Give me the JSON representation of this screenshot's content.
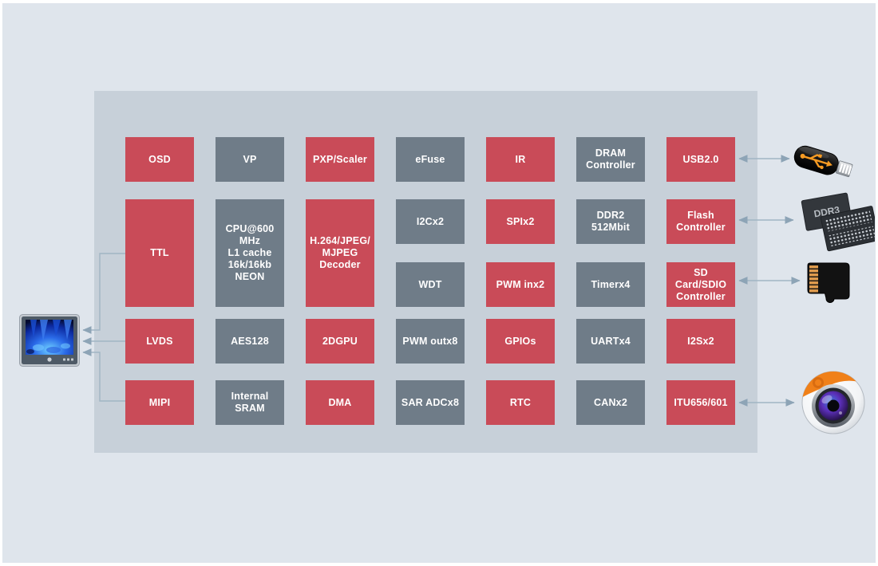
{
  "palette": {
    "red_block": "#c94b58",
    "slate_block": "#6f7c88",
    "container": "#c7d0d9",
    "page_background": "#dfe5ec",
    "arrow": "#93a9ba",
    "block_text": "#ffffff",
    "accent_orange": "#f08019"
  },
  "soc": {
    "blocks": [
      {
        "id": "osd",
        "label": "OSD",
        "color": "red",
        "col": 0,
        "row": 0,
        "rowspan": 1
      },
      {
        "id": "vp",
        "label": "VP",
        "color": "slate",
        "col": 1,
        "row": 0,
        "rowspan": 1
      },
      {
        "id": "pxp-scaler",
        "label": "PXP/Scaler",
        "color": "red",
        "col": 2,
        "row": 0,
        "rowspan": 1
      },
      {
        "id": "efuse",
        "label": "eFuse",
        "color": "slate",
        "col": 3,
        "row": 0,
        "rowspan": 1
      },
      {
        "id": "ir",
        "label": "IR",
        "color": "red",
        "col": 4,
        "row": 0,
        "rowspan": 1
      },
      {
        "id": "dram-controller",
        "label": "DRAM\nController",
        "color": "slate",
        "col": 5,
        "row": 0,
        "rowspan": 1
      },
      {
        "id": "usb2",
        "label": "USB2.0",
        "color": "red",
        "col": 6,
        "row": 0,
        "rowspan": 1
      },
      {
        "id": "ttl",
        "label": "TTL",
        "color": "red",
        "col": 0,
        "row": 1,
        "rowspan": 2
      },
      {
        "id": "cpu",
        "label": "CPU@600\nMHz\nL1 cache\n16k/16kb\nNEON",
        "color": "slate",
        "col": 1,
        "row": 1,
        "rowspan": 2
      },
      {
        "id": "h264-decoder",
        "label": "H.264/JPEG/\nMJPEG\nDecoder",
        "color": "red",
        "col": 2,
        "row": 1,
        "rowspan": 2
      },
      {
        "id": "i2c",
        "label": "I2Cx2",
        "color": "slate",
        "col": 3,
        "row": 1,
        "rowspan": 1
      },
      {
        "id": "spi",
        "label": "SPIx2",
        "color": "red",
        "col": 4,
        "row": 1,
        "rowspan": 1
      },
      {
        "id": "ddr2",
        "label": "DDR2\n512Mbit",
        "color": "slate",
        "col": 5,
        "row": 1,
        "rowspan": 1
      },
      {
        "id": "flash-controller",
        "label": "Flash\nController",
        "color": "red",
        "col": 6,
        "row": 1,
        "rowspan": 1
      },
      {
        "id": "wdt",
        "label": "WDT",
        "color": "slate",
        "col": 3,
        "row": 2,
        "rowspan": 1
      },
      {
        "id": "pwm-in",
        "label": "PWM inx2",
        "color": "red",
        "col": 4,
        "row": 2,
        "rowspan": 1
      },
      {
        "id": "timer",
        "label": "Timerx4",
        "color": "slate",
        "col": 5,
        "row": 2,
        "rowspan": 1
      },
      {
        "id": "sd-sdio-controller",
        "label": "SD\nCard/SDIO\nController",
        "color": "red",
        "col": 6,
        "row": 2,
        "rowspan": 1
      },
      {
        "id": "lvds",
        "label": "LVDS",
        "color": "red",
        "col": 0,
        "row": 3,
        "rowspan": 1
      },
      {
        "id": "aes128",
        "label": "AES128",
        "color": "slate",
        "col": 1,
        "row": 3,
        "rowspan": 1
      },
      {
        "id": "gpu2d",
        "label": "2DGPU",
        "color": "red",
        "col": 2,
        "row": 3,
        "rowspan": 1
      },
      {
        "id": "pwm-out",
        "label": "PWM outx8",
        "color": "slate",
        "col": 3,
        "row": 3,
        "rowspan": 1
      },
      {
        "id": "gpios",
        "label": "GPIOs",
        "color": "red",
        "col": 4,
        "row": 3,
        "rowspan": 1
      },
      {
        "id": "uart",
        "label": "UARTx4",
        "color": "slate",
        "col": 5,
        "row": 3,
        "rowspan": 1
      },
      {
        "id": "i2s",
        "label": "I2Sx2",
        "color": "red",
        "col": 6,
        "row": 3,
        "rowspan": 1
      },
      {
        "id": "mipi",
        "label": "MIPI",
        "color": "red",
        "col": 0,
        "row": 4,
        "rowspan": 1
      },
      {
        "id": "internal-sram",
        "label": "Internal\nSRAM",
        "color": "slate",
        "col": 1,
        "row": 4,
        "rowspan": 1
      },
      {
        "id": "dma",
        "label": "DMA",
        "color": "red",
        "col": 2,
        "row": 4,
        "rowspan": 1
      },
      {
        "id": "sar-adc",
        "label": "SAR ADCx8",
        "color": "slate",
        "col": 3,
        "row": 4,
        "rowspan": 1
      },
      {
        "id": "rtc",
        "label": "RTC",
        "color": "red",
        "col": 4,
        "row": 4,
        "rowspan": 1
      },
      {
        "id": "can",
        "label": "CANx2",
        "color": "slate",
        "col": 5,
        "row": 4,
        "rowspan": 1
      },
      {
        "id": "itu",
        "label": "ITU656/601",
        "color": "red",
        "col": 6,
        "row": 4,
        "rowspan": 1
      }
    ]
  },
  "peripherals": {
    "display": {
      "name": "lcd-monitor"
    },
    "usb_drive": {
      "name": "usb-flash-drive"
    },
    "memory": {
      "name": "ddr3-memory-chips",
      "chip_label": "DDR3"
    },
    "micro_sd": {
      "name": "micro-sd-card"
    },
    "camera": {
      "name": "camera-module"
    }
  },
  "connections": [
    {
      "from": "TTL",
      "to": "lcd-monitor",
      "direction": "one-way"
    },
    {
      "from": "LVDS",
      "to": "lcd-monitor",
      "direction": "one-way"
    },
    {
      "from": "MIPI",
      "to": "lcd-monitor",
      "direction": "one-way"
    },
    {
      "from": "USB2.0",
      "to": "usb-flash-drive",
      "direction": "two-way"
    },
    {
      "from": "Flash Controller",
      "to": "ddr3-memory-chips",
      "direction": "two-way"
    },
    {
      "from": "SD Card/SDIO Controller",
      "to": "micro-sd-card",
      "direction": "two-way"
    },
    {
      "from": "ITU656/601",
      "to": "camera-module",
      "direction": "two-way"
    }
  ]
}
